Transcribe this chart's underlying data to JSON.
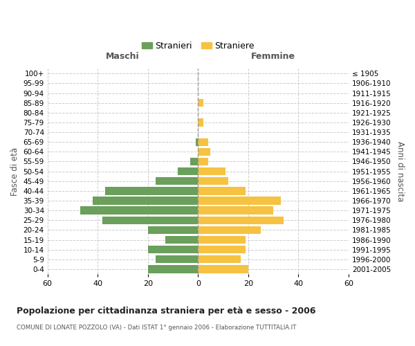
{
  "age_groups_bottom_to_top": [
    "0-4",
    "5-9",
    "10-14",
    "15-19",
    "20-24",
    "25-29",
    "30-34",
    "35-39",
    "40-44",
    "45-49",
    "50-54",
    "55-59",
    "60-64",
    "65-69",
    "70-74",
    "75-79",
    "80-84",
    "85-89",
    "90-94",
    "95-99",
    "100+"
  ],
  "birth_years_bottom_to_top": [
    "2001-2005",
    "1996-2000",
    "1991-1995",
    "1986-1990",
    "1981-1985",
    "1976-1980",
    "1971-1975",
    "1966-1970",
    "1961-1965",
    "1956-1960",
    "1951-1955",
    "1946-1950",
    "1941-1945",
    "1936-1940",
    "1931-1935",
    "1926-1930",
    "1921-1925",
    "1916-1920",
    "1911-1915",
    "1906-1910",
    "≤ 1905"
  ],
  "males_bottom_to_top": [
    20,
    17,
    20,
    13,
    20,
    38,
    47,
    42,
    37,
    17,
    8,
    3,
    0,
    1,
    0,
    0,
    0,
    0,
    0,
    0,
    0
  ],
  "females_bottom_to_top": [
    20,
    17,
    19,
    19,
    25,
    34,
    30,
    33,
    19,
    12,
    11,
    4,
    5,
    4,
    0,
    2,
    0,
    2,
    0,
    0,
    0
  ],
  "male_color": "#6a9f5c",
  "female_color": "#f5c242",
  "background_color": "#ffffff",
  "grid_color": "#cccccc",
  "title": "Popolazione per cittadinanza straniera per età e sesso - 2006",
  "subtitle": "COMUNE DI LONATE POZZOLO (VA) - Dati ISTAT 1° gennaio 2006 - Elaborazione TUTTITALIA.IT",
  "left_label": "Maschi",
  "right_label": "Femmine",
  "y_left_label": "Fasce di età",
  "y_right_label": "Anni di nascita",
  "legend_male": "Stranieri",
  "legend_female": "Straniere",
  "xlim": 60,
  "xticks": [
    -60,
    -40,
    -20,
    0,
    20,
    40,
    60
  ],
  "xticklabels": [
    "60",
    "40",
    "20",
    "0",
    "20",
    "40",
    "60"
  ]
}
